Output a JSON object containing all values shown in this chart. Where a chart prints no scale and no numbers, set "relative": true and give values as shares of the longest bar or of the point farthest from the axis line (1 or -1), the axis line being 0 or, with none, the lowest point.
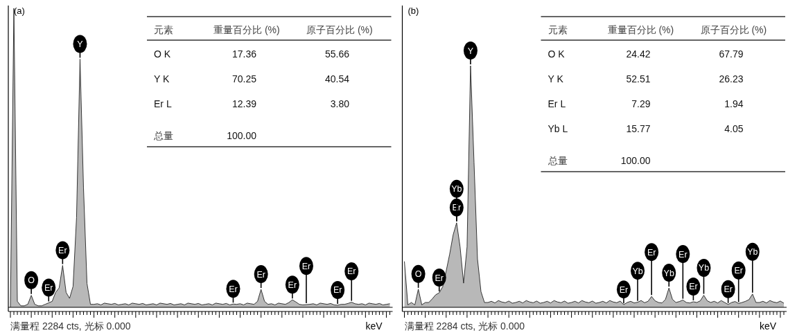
{
  "chart_data": [
    {
      "type": "area",
      "title": "(a)",
      "xlabel": "keV",
      "relative": true,
      "color": "#b8b8b8",
      "categories": [
        null,
        null,
        null,
        null,
        null,
        null,
        null,
        null,
        null,
        null,
        null,
        null,
        null,
        null,
        null,
        null,
        null,
        null,
        null,
        null,
        null,
        null,
        null,
        null,
        null,
        null,
        null,
        null,
        null,
        null,
        null,
        null,
        null,
        null,
        null,
        null,
        null,
        null,
        null,
        null,
        null,
        null,
        null,
        null,
        null,
        null,
        null,
        null,
        null,
        null,
        null,
        null,
        null,
        null,
        null,
        null,
        null,
        null,
        null,
        null,
        null,
        null,
        null,
        null,
        null,
        null,
        null,
        null,
        null,
        null,
        null,
        null,
        null,
        null,
        null,
        null,
        null,
        null,
        null,
        null,
        null,
        null,
        null,
        null,
        null,
        null,
        null,
        null,
        null,
        null,
        null,
        null,
        null,
        null,
        null,
        null,
        null,
        null,
        null,
        null,
        null,
        null,
        null,
        null,
        null,
        null,
        null,
        null,
        null,
        null
      ],
      "values": [
        0,
        1,
        0.02,
        0.005,
        0.005,
        0.01,
        0.04,
        0.01,
        0.005,
        0.005,
        0.01,
        0.015,
        0.02,
        0.05,
        0.065,
        0.14,
        0.05,
        0.03,
        0.07,
        0.3,
        0.83,
        0.4,
        0.08,
        0.01,
        0.01,
        0.012,
        0.008,
        0.014,
        0.012,
        0.01,
        0.013,
        0.008,
        0.01,
        0.012,
        0.008,
        0.014,
        0.012,
        0.01,
        0.013,
        0.008,
        0.01,
        0.012,
        0.008,
        0.014,
        0.012,
        0.01,
        0.013,
        0.008,
        0.01,
        0.012,
        0.008,
        0.014,
        0.012,
        0.01,
        0.013,
        0.008,
        0.01,
        0.012,
        0.008,
        0.014,
        0.012,
        0.01,
        0.013,
        0.008,
        0.011,
        0.01,
        0.012,
        0.008,
        0.014,
        0.012,
        0.01,
        0.02,
        0.06,
        0.02,
        0.01,
        0.012,
        0.008,
        0.014,
        0.012,
        0.01,
        0.016,
        0.025,
        0.018,
        0.01,
        0.008,
        0.009,
        0.01,
        0.012,
        0.008,
        0.014,
        0.012,
        0.01,
        0.013,
        0.008,
        0.007,
        0.01,
        0.01,
        0.013,
        0.017,
        0.012,
        0.01,
        0.012,
        0.008,
        0.014,
        0.012,
        0.01,
        0.013,
        0.008,
        0.01,
        0.012
      ],
      "annotations": [
        "满量程 2284 cts, 光标 0.000",
        "元素",
        "重量百分比 (%)",
        "原子百分比 (%)",
        "O K",
        "17.36",
        "55.66",
        "Y K",
        "70.25",
        "40.54",
        "Er L",
        "12.39",
        "3.80",
        "总量",
        "100.00",
        {
          "text": "O",
          "y": 0.04
        },
        {
          "text": "Er",
          "y": 0.015
        },
        {
          "text": "Er",
          "y": 0.14
        },
        {
          "text": "Y",
          "y": 0.83
        },
        {
          "text": "Er",
          "y": 0.011
        },
        {
          "text": "Er",
          "y": 0.06
        },
        {
          "text": "Er",
          "y": 0.025
        },
        {
          "text": "Er",
          "y": 0.009
        },
        {
          "text": "Er",
          "y": 0.007
        },
        {
          "text": "Er",
          "y": 0.017
        }
      ]
    },
    {
      "type": "area",
      "title": "(b)",
      "xlabel": "keV",
      "relative": true,
      "color": "#b8b8b8",
      "categories": [
        null,
        null,
        null,
        null,
        null,
        null,
        null,
        null,
        null,
        null,
        null,
        null,
        null,
        null,
        null,
        null,
        null,
        null,
        null,
        null,
        null,
        null,
        null,
        null,
        null,
        null,
        null,
        null,
        null,
        null,
        null,
        null,
        null,
        null,
        null,
        null,
        null,
        null,
        null,
        null,
        null,
        null,
        null,
        null,
        null,
        null,
        null,
        null,
        null,
        null,
        null,
        null,
        null,
        null,
        null,
        null,
        null,
        null,
        null,
        null,
        null,
        null,
        null,
        null,
        null,
        null,
        null,
        null,
        null,
        null,
        null,
        null,
        null,
        null,
        null,
        null,
        null,
        null,
        null,
        null,
        null,
        null,
        null,
        null,
        null,
        null,
        null,
        null,
        null,
        null,
        null,
        null,
        null,
        null,
        null,
        null,
        null,
        null,
        null,
        null,
        null,
        null,
        null,
        null,
        null,
        null,
        null,
        null,
        null,
        null
      ],
      "values": [
        0.19,
        0.01,
        0.02,
        0.01,
        0.075,
        0.01,
        0.02,
        0.02,
        0.035,
        0.052,
        0.06,
        0.085,
        0.15,
        0.22,
        0.3,
        0.35,
        0.25,
        0.1,
        0.25,
        1,
        0.6,
        0.2,
        0.065,
        0.02,
        0.02,
        0.025,
        0.018,
        0.028,
        0.022,
        0.019,
        0.026,
        0.017,
        0.02,
        0.025,
        0.018,
        0.028,
        0.022,
        0.019,
        0.026,
        0.017,
        0.02,
        0.025,
        0.018,
        0.028,
        0.022,
        0.019,
        0.026,
        0.017,
        0.02,
        0.025,
        0.018,
        0.028,
        0.022,
        0.019,
        0.026,
        0.017,
        0.02,
        0.025,
        0.018,
        0.028,
        0.022,
        0.019,
        0.026,
        0.011,
        0.02,
        0.025,
        0.018,
        0.021,
        0.028,
        0.019,
        0.025,
        0.045,
        0.027,
        0.02,
        0.018,
        0.033,
        0.08,
        0.033,
        0.02,
        0.024,
        0.03,
        0.02,
        0.018,
        0.023,
        0.02,
        0.027,
        0.05,
        0.027,
        0.02,
        0.025,
        0.018,
        0.028,
        0.02,
        0.012,
        0.02,
        0.024,
        0.016,
        0.02,
        0.025,
        0.032,
        0.055,
        0.02,
        0.02,
        0.025,
        0.018,
        0.028,
        0.022,
        0.019,
        0.026,
        0.017
      ],
      "annotations": [
        "满量程 2284 cts, 光标 0.000",
        "元素",
        "重量百分比 (%)",
        "原子百分比 (%)",
        "O K",
        "24.42",
        "67.79",
        "Y K",
        "52.51",
        "26.23",
        "Er L",
        "7.29",
        "1.94",
        "Yb L",
        "15.77",
        "4.05",
        "总量",
        "100.00",
        {
          "text": "O",
          "y": 0.075
        },
        {
          "text": "Er",
          "y": 0.06
        },
        {
          "text": "Er",
          "y": 0.35
        },
        {
          "text": "Yb",
          "y": 0.35
        },
        {
          "text": "Y",
          "y": 1
        },
        {
          "text": "Er",
          "y": 0.011
        },
        {
          "text": "Yb",
          "y": 0.021
        },
        {
          "text": "Er",
          "y": 0.045
        },
        {
          "text": "Yb",
          "y": 0.08
        },
        {
          "text": "Er",
          "y": 0.03
        },
        {
          "text": "Er",
          "y": 0.023
        },
        {
          "text": "Yb",
          "y": 0.05
        },
        {
          "text": "Er",
          "y": 0.012
        },
        {
          "text": "Er",
          "y": 0.016
        },
        {
          "text": "Yb",
          "y": 0.055
        }
      ]
    }
  ]
}
